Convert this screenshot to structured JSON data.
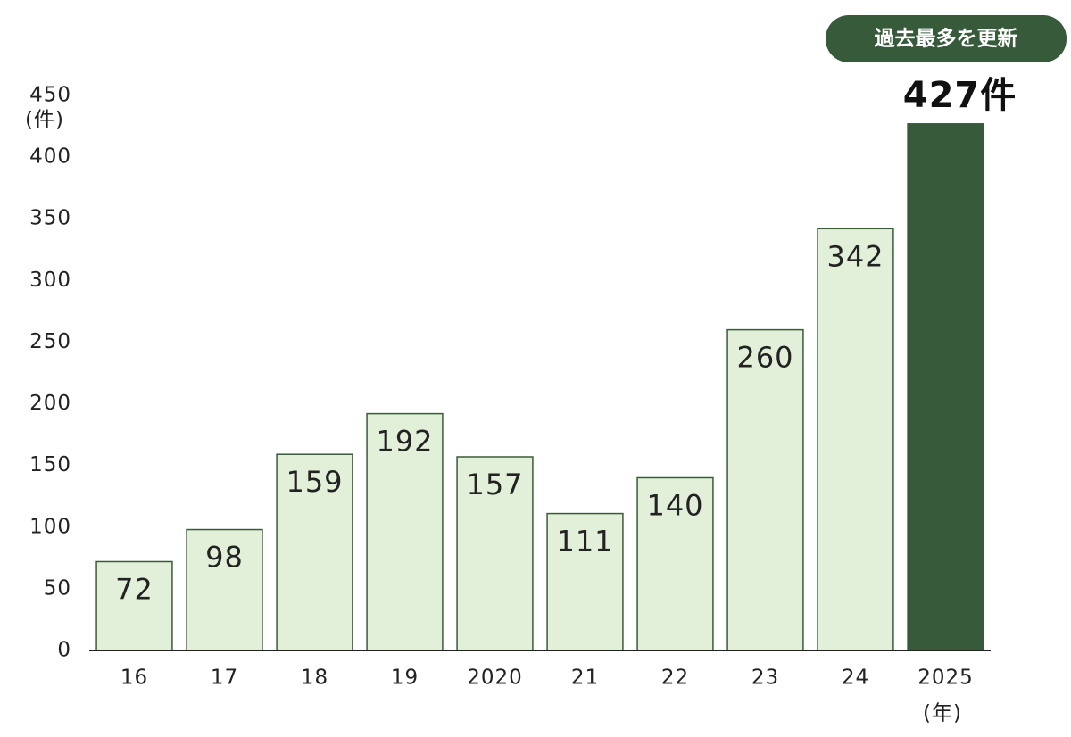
{
  "chart_data": {
    "type": "bar",
    "annotation": "過去最多を更新",
    "y_label": "(件)",
    "x_label": "(年)",
    "categories": [
      "16",
      "17",
      "18",
      "19",
      "2020",
      "21",
      "22",
      "23",
      "24",
      "2025"
    ],
    "values": [
      72,
      98,
      159,
      192,
      157,
      111,
      140,
      260,
      342,
      427
    ],
    "value_labels": [
      "72",
      "98",
      "159",
      "192",
      "157",
      "111",
      "140",
      "260",
      "342",
      "427件"
    ],
    "colors": [
      "#e2efd9",
      "#e2efd9",
      "#e2efd9",
      "#e2efd9",
      "#e2efd9",
      "#e2efd9",
      "#e2efd9",
      "#e2efd9",
      "#e2efd9",
      "#375a3a"
    ],
    "ylim": [
      0,
      450
    ],
    "yticks": [
      0,
      50,
      100,
      150,
      200,
      250,
      300,
      350,
      400,
      450
    ],
    "grid": false
  }
}
